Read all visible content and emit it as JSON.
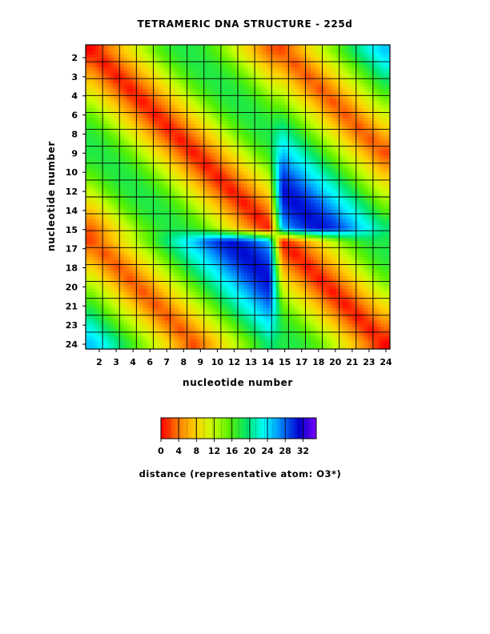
{
  "chart_data": {
    "type": "heatmap",
    "title": "TETRAMERIC DNA STRUCTURE - 225d",
    "xlabel": "nucleotide number",
    "ylabel": "nucleotide number",
    "x_tick_labels": [
      "2",
      "3",
      "4",
      "6",
      "7",
      "8",
      "9",
      "10",
      "12",
      "13",
      "14",
      "15",
      "17",
      "18",
      "20",
      "21",
      "23",
      "24"
    ],
    "y_tick_labels": [
      "2",
      "3",
      "4",
      "6",
      "8",
      "9",
      "10",
      "12",
      "14",
      "15",
      "17",
      "18",
      "20",
      "21",
      "23",
      "24"
    ],
    "grid": true,
    "colorbar": {
      "label": "distance (representative atom: O3*)",
      "tick_labels": [
        "0",
        "4",
        "8",
        "12",
        "16",
        "20",
        "24",
        "28",
        "32"
      ],
      "range": [
        0,
        35
      ],
      "colors": [
        "#ff0000",
        "#ff7a00",
        "#ffd200",
        "#c8ff00",
        "#55f000",
        "#00e66e",
        "#00ffff",
        "#0080ff",
        "#0000d0",
        "#7a00ff"
      ]
    },
    "matrix_size": 24,
    "description_of_pattern": "",
    "values": [
      [
        0,
        3,
        6,
        9,
        12,
        15,
        17,
        18,
        18,
        17,
        15,
        12,
        9,
        6,
        3,
        2,
        5,
        8,
        11,
        14,
        17,
        20,
        23,
        25
      ],
      [
        3,
        0,
        3,
        6,
        9,
        12,
        15,
        17,
        18,
        18,
        17,
        15,
        12,
        9,
        6,
        5,
        2,
        5,
        8,
        11,
        14,
        17,
        20,
        23
      ],
      [
        6,
        3,
        0,
        3,
        6,
        9,
        12,
        15,
        17,
        18,
        18,
        17,
        15,
        12,
        9,
        8,
        5,
        2,
        5,
        8,
        11,
        14,
        17,
        20
      ],
      [
        9,
        6,
        3,
        0,
        3,
        6,
        9,
        12,
        15,
        17,
        18,
        18,
        17,
        15,
        12,
        11,
        8,
        5,
        2,
        5,
        8,
        11,
        14,
        17
      ],
      [
        12,
        9,
        6,
        3,
        0,
        3,
        6,
        9,
        12,
        15,
        17,
        18,
        18,
        17,
        15,
        14,
        11,
        8,
        5,
        2,
        5,
        8,
        11,
        14
      ],
      [
        15,
        12,
        9,
        6,
        3,
        0,
        3,
        6,
        9,
        12,
        15,
        17,
        18,
        18,
        17,
        17,
        14,
        11,
        8,
        5,
        2,
        5,
        8,
        11
      ],
      [
        17,
        15,
        12,
        9,
        6,
        3,
        0,
        3,
        6,
        9,
        12,
        15,
        17,
        18,
        18,
        20,
        17,
        14,
        11,
        8,
        5,
        2,
        5,
        8
      ],
      [
        18,
        17,
        15,
        12,
        9,
        6,
        3,
        0,
        3,
        6,
        9,
        12,
        15,
        17,
        18,
        23,
        20,
        17,
        14,
        11,
        8,
        5,
        2,
        5
      ],
      [
        18,
        18,
        17,
        15,
        12,
        9,
        6,
        3,
        0,
        3,
        6,
        9,
        12,
        15,
        17,
        25,
        23,
        20,
        17,
        14,
        11,
        8,
        5,
        2
      ],
      [
        17,
        18,
        18,
        17,
        15,
        12,
        9,
        6,
        3,
        0,
        3,
        6,
        9,
        12,
        15,
        28,
        25,
        23,
        20,
        17,
        14,
        11,
        8,
        5
      ],
      [
        15,
        17,
        18,
        18,
        17,
        15,
        12,
        9,
        6,
        3,
        0,
        3,
        6,
        9,
        12,
        30,
        28,
        25,
        23,
        20,
        17,
        14,
        11,
        8
      ],
      [
        12,
        15,
        17,
        18,
        18,
        17,
        15,
        12,
        9,
        6,
        3,
        0,
        3,
        6,
        9,
        31,
        30,
        28,
        25,
        23,
        20,
        17,
        14,
        11
      ],
      [
        9,
        12,
        15,
        17,
        18,
        18,
        17,
        15,
        12,
        9,
        6,
        3,
        0,
        3,
        6,
        30,
        31,
        30,
        28,
        25,
        23,
        20,
        17,
        14
      ],
      [
        6,
        9,
        12,
        15,
        17,
        18,
        18,
        17,
        15,
        12,
        9,
        6,
        3,
        0,
        3,
        28,
        30,
        31,
        30,
        28,
        25,
        23,
        20,
        17
      ],
      [
        3,
        6,
        9,
        12,
        15,
        17,
        18,
        18,
        17,
        15,
        12,
        9,
        6,
        3,
        0,
        25,
        28,
        30,
        31,
        30,
        28,
        25,
        23,
        20
      ],
      [
        2,
        5,
        8,
        11,
        14,
        17,
        20,
        23,
        25,
        28,
        30,
        31,
        30,
        28,
        25,
        0,
        3,
        6,
        9,
        12,
        15,
        17,
        18,
        18
      ],
      [
        5,
        2,
        5,
        8,
        11,
        14,
        17,
        20,
        23,
        25,
        28,
        30,
        31,
        30,
        28,
        3,
        0,
        3,
        6,
        9,
        12,
        15,
        17,
        18
      ],
      [
        8,
        5,
        2,
        5,
        8,
        11,
        14,
        17,
        20,
        23,
        25,
        28,
        30,
        31,
        30,
        6,
        3,
        0,
        3,
        6,
        9,
        12,
        15,
        17
      ],
      [
        11,
        8,
        5,
        2,
        5,
        8,
        11,
        14,
        17,
        20,
        23,
        25,
        28,
        30,
        31,
        9,
        6,
        3,
        0,
        3,
        6,
        9,
        12,
        15
      ],
      [
        14,
        11,
        8,
        5,
        2,
        5,
        8,
        11,
        14,
        17,
        20,
        23,
        25,
        28,
        30,
        12,
        9,
        6,
        3,
        0,
        3,
        6,
        9,
        12
      ],
      [
        17,
        14,
        11,
        8,
        5,
        2,
        5,
        8,
        11,
        14,
        17,
        20,
        23,
        25,
        28,
        15,
        12,
        9,
        6,
        3,
        0,
        3,
        6,
        9
      ],
      [
        20,
        17,
        14,
        11,
        8,
        5,
        2,
        5,
        8,
        11,
        14,
        17,
        20,
        23,
        25,
        17,
        15,
        12,
        9,
        6,
        3,
        0,
        3,
        6
      ],
      [
        23,
        20,
        17,
        14,
        11,
        8,
        5,
        2,
        5,
        8,
        11,
        14,
        17,
        20,
        23,
        18,
        17,
        15,
        12,
        9,
        6,
        3,
        0,
        3
      ],
      [
        25,
        23,
        20,
        17,
        14,
        11,
        8,
        5,
        2,
        5,
        8,
        11,
        14,
        17,
        20,
        18,
        18,
        17,
        15,
        12,
        9,
        6,
        3,
        0
      ]
    ]
  }
}
